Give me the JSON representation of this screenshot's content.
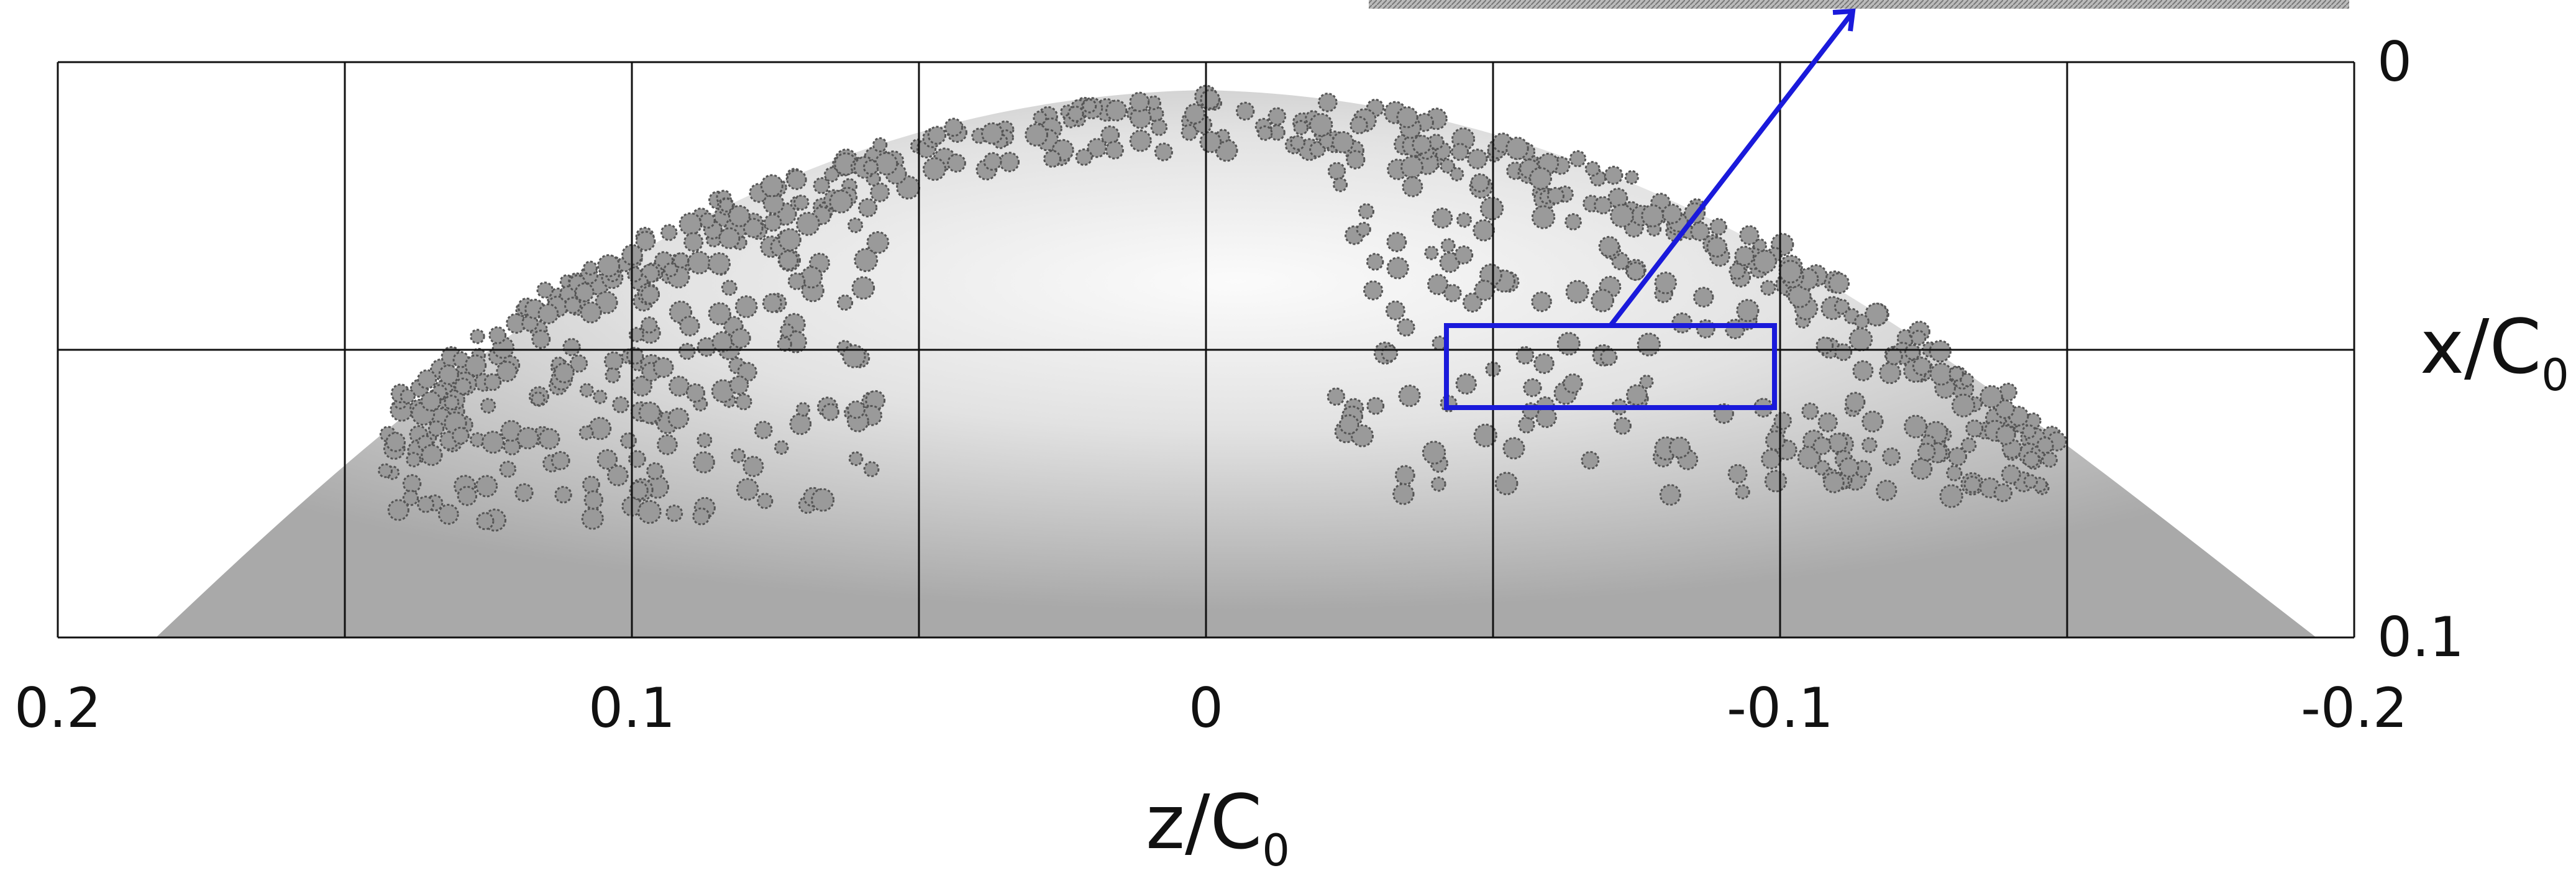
{
  "chart_data": {
    "type": "surface",
    "xlabel": {
      "text": "z/C",
      "sub": "0"
    },
    "ylabel": {
      "text": "x/C",
      "sub": "0"
    },
    "xlim": [
      0.2,
      -0.2
    ],
    "xticks": [
      0.2,
      0.1,
      0,
      -0.1,
      -0.2
    ],
    "ylim": [
      0,
      0.1
    ],
    "yticks": [
      0,
      0.1
    ],
    "y_inverted": true,
    "grid": true,
    "grid_x": [
      0.2,
      0.15,
      0.1,
      0.05,
      0,
      -0.05,
      -0.1,
      -0.15,
      -0.2
    ],
    "grid_y": [
      0,
      0.05,
      0.1
    ],
    "highlight_color": "#1a1adb"
  }
}
